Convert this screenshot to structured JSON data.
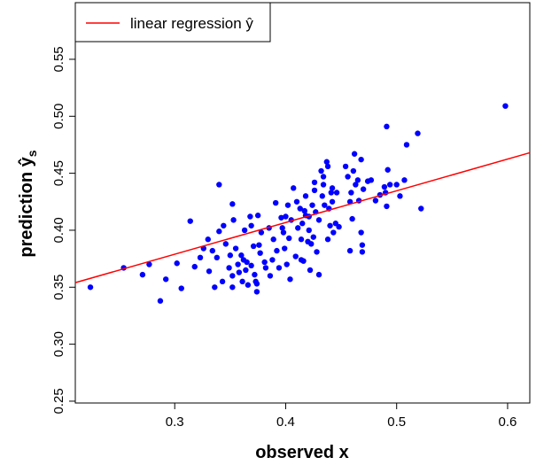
{
  "chart_data": {
    "type": "scatter",
    "xlabel": "observed x",
    "ylabel": "prediction ŷ",
    "ylabel_sub": "s",
    "color": "#0000ff",
    "xlim": [
      0.2104,
      0.62
    ],
    "ylim": [
      0.2484,
      0.5997
    ],
    "xticks": [
      0.3,
      0.4,
      0.5,
      0.6
    ],
    "yticks": [
      0.25,
      {
        "value": 0.3,
        "label": "0.30"
      },
      0.35,
      {
        "value": 0.4,
        "label": "0.40"
      },
      0.45,
      {
        "value": 0.5,
        "label": "0.50"
      },
      0.55
    ],
    "legend": "top-left",
    "x": [
      0.224,
      0.254,
      0.271,
      0.277,
      0.287,
      0.292,
      0.302,
      0.306,
      0.314,
      0.318,
      0.323,
      0.326,
      0.33,
      0.331,
      0.334,
      0.336,
      0.338,
      0.34,
      0.34,
      0.343,
      0.344,
      0.346,
      0.349,
      0.35,
      0.352,
      0.352,
      0.352,
      0.353,
      0.355,
      0.357,
      0.358,
      0.36,
      0.361,
      0.362,
      0.363,
      0.364,
      0.365,
      0.366,
      0.368,
      0.369,
      0.369,
      0.371,
      0.372,
      0.373,
      0.374,
      0.374,
      0.375,
      0.376,
      0.377,
      0.378,
      0.381,
      0.382,
      0.385,
      0.386,
      0.388,
      0.389,
      0.391,
      0.392,
      0.394,
      0.396,
      0.397,
      0.398,
      0.399,
      0.4,
      0.401,
      0.402,
      0.403,
      0.404,
      0.405,
      0.407,
      0.409,
      0.41,
      0.411,
      0.413,
      0.414,
      0.414,
      0.415,
      0.416,
      0.417,
      0.418,
      0.418,
      0.42,
      0.421,
      0.421,
      0.422,
      0.423,
      0.424,
      0.425,
      0.426,
      0.426,
      0.427,
      0.428,
      0.43,
      0.43,
      0.432,
      0.433,
      0.434,
      0.434,
      0.435,
      0.437,
      0.438,
      0.438,
      0.439,
      0.44,
      0.441,
      0.442,
      0.442,
      0.443,
      0.445,
      0.446,
      0.448,
      0.454,
      0.456,
      0.458,
      0.458,
      0.459,
      0.46,
      0.461,
      0.462,
      0.463,
      0.465,
      0.466,
      0.468,
      0.468,
      0.469,
      0.469,
      0.47,
      0.474,
      0.477,
      0.481,
      0.485,
      0.489,
      0.49,
      0.491,
      0.491,
      0.492,
      0.494,
      0.5,
      0.503,
      0.507,
      0.509,
      0.519,
      0.522,
      0.598
    ],
    "values": [
      0.35,
      0.367,
      0.361,
      0.37,
      0.338,
      0.357,
      0.371,
      0.349,
      0.408,
      0.368,
      0.376,
      0.384,
      0.392,
      0.364,
      0.382,
      0.35,
      0.376,
      0.399,
      0.44,
      0.355,
      0.404,
      0.388,
      0.367,
      0.378,
      0.423,
      0.36,
      0.35,
      0.409,
      0.384,
      0.37,
      0.363,
      0.378,
      0.355,
      0.374,
      0.4,
      0.365,
      0.372,
      0.352,
      0.412,
      0.404,
      0.369,
      0.386,
      0.361,
      0.355,
      0.353,
      0.346,
      0.413,
      0.387,
      0.38,
      0.398,
      0.372,
      0.367,
      0.402,
      0.36,
      0.374,
      0.392,
      0.424,
      0.382,
      0.367,
      0.411,
      0.402,
      0.398,
      0.384,
      0.412,
      0.37,
      0.422,
      0.393,
      0.357,
      0.409,
      0.437,
      0.377,
      0.425,
      0.402,
      0.419,
      0.374,
      0.392,
      0.406,
      0.373,
      0.417,
      0.413,
      0.43,
      0.39,
      0.412,
      0.4,
      0.365,
      0.388,
      0.422,
      0.394,
      0.442,
      0.435,
      0.416,
      0.381,
      0.409,
      0.361,
      0.452,
      0.43,
      0.447,
      0.44,
      0.422,
      0.46,
      0.392,
      0.456,
      0.419,
      0.404,
      0.433,
      0.425,
      0.437,
      0.398,
      0.406,
      0.433,
      0.403,
      0.456,
      0.447,
      0.425,
      0.382,
      0.433,
      0.41,
      0.452,
      0.467,
      0.44,
      0.444,
      0.426,
      0.398,
      0.462,
      0.387,
      0.381,
      0.436,
      0.443,
      0.444,
      0.426,
      0.431,
      0.438,
      0.433,
      0.491,
      0.421,
      0.453,
      0.44,
      0.44,
      0.43,
      0.444,
      0.475,
      0.485,
      0.419,
      0.509
    ],
    "series": [
      {
        "name": "linear regression ŷ",
        "color": "#ff0000",
        "type": "line",
        "x": [
          0.2104,
          0.62
        ],
        "values": [
          0.354,
          0.468
        ]
      }
    ]
  }
}
